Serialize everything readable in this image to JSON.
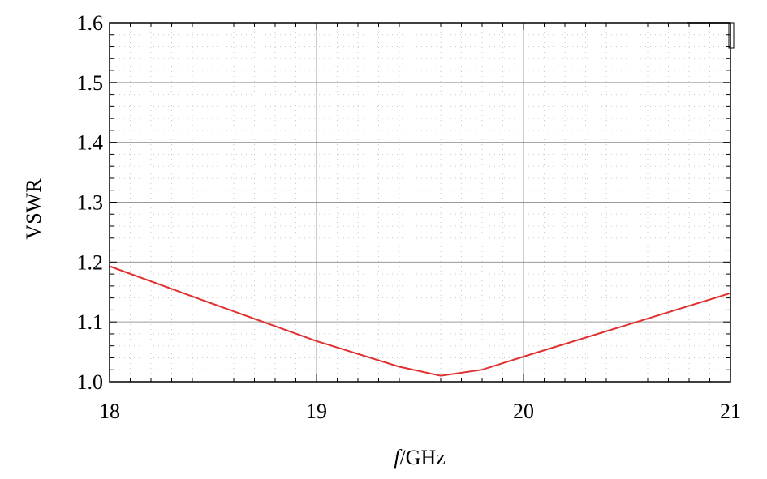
{
  "chart_data": {
    "type": "line",
    "title": "",
    "xlabel_italic": "f",
    "xlabel_rest": "/GHz",
    "ylabel": "VSWR",
    "xlim": [
      18,
      21
    ],
    "ylim": [
      1.0,
      1.6
    ],
    "x_ticks": [
      "18",
      "19",
      "20",
      "21"
    ],
    "y_ticks": [
      "1.0",
      "1.1",
      "1.2",
      "1.3",
      "1.4",
      "1.5",
      "1.6"
    ],
    "grid": true,
    "series": [
      {
        "color": "#e03030",
        "x": [
          18.0,
          18.5,
          19.0,
          19.4,
          19.6,
          19.8,
          20.0,
          20.5,
          21.0
        ],
        "y": [
          1.193,
          1.13,
          1.068,
          1.025,
          1.01,
          1.02,
          1.042,
          1.095,
          1.148
        ]
      }
    ]
  }
}
